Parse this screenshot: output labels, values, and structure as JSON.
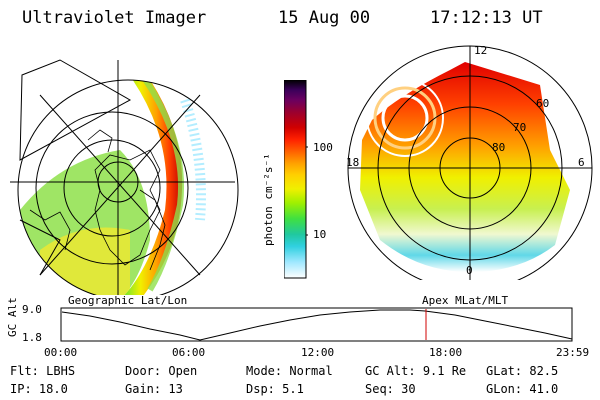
{
  "header": {
    "instrument": "Ultraviolet Imager",
    "date": "15 Aug 00",
    "time": "17:12:13 UT"
  },
  "left_panel": {
    "caption": "Geographic Lat/Lon"
  },
  "right_panel": {
    "caption": "Apex MLat/MLT",
    "mlt_labels": [
      "12",
      "18",
      "6",
      "0"
    ],
    "lat_labels": [
      "60",
      "70",
      "80"
    ]
  },
  "colorbar": {
    "unit": "photon cm⁻²s⁻¹",
    "ticks": [
      "100",
      "10"
    ],
    "colors": [
      "#000000",
      "#3a005a",
      "#6a0060",
      "#a0002a",
      "#d00000",
      "#ff2000",
      "#ff6000",
      "#ffa000",
      "#ffd000",
      "#f0f000",
      "#a0f000",
      "#40e040",
      "#20c8a0",
      "#30d0e0",
      "#a0e8ff",
      "#ffffff"
    ]
  },
  "altitude_plot": {
    "ylabel": "GC Alt",
    "y_ticks": [
      "9.0",
      "1.8"
    ],
    "x_ticks": [
      "00:00",
      "06:00",
      "12:00",
      "18:00",
      "23:59"
    ],
    "marker_color": "#d00000"
  },
  "info": {
    "filter_label": "Flt:",
    "filter_value": "LBHS",
    "ip_label": "IP:",
    "ip_value": "18.0",
    "door_label": "Door:",
    "door_value": "Open",
    "gain_label": "Gain:",
    "gain_value": "13",
    "mode_label": "Mode:",
    "mode_value": "Normal",
    "dsp_label": "Dsp:",
    "dsp_value": "5.1",
    "gcalt_label": "GC Alt:",
    "gcalt_value": "9.1 Re",
    "seq_label": "Seq:",
    "seq_value": "30",
    "glat_label": "GLat:",
    "glat_value": "82.5",
    "glon_label": "GLon:",
    "glon_value": "41.0"
  }
}
